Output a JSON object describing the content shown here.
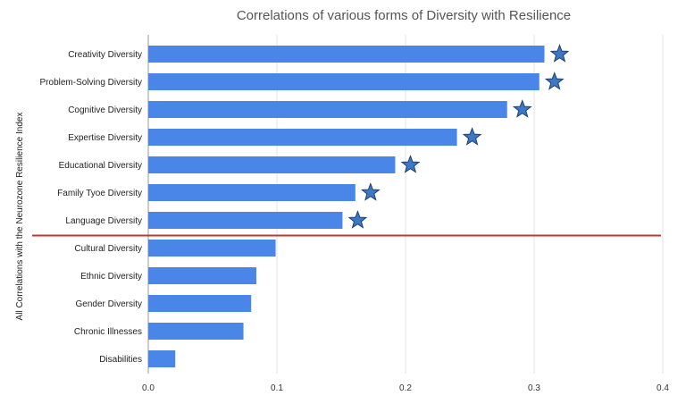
{
  "chart_data": {
    "type": "bar",
    "orientation": "horizontal",
    "title": "Correlations of various forms of Diversity with Resilience",
    "ylabel": "All Correlations with the Neurozone Resilience Index",
    "xlabel": "",
    "xlim": [
      0,
      0.4
    ],
    "xticks": [
      "0.0",
      "0.1",
      "0.2",
      "0.3",
      "0.4"
    ],
    "grid": "vertical",
    "bar_color": "#4a86e8",
    "marker_color": "#3c78c3",
    "divider_color": "#c0392b",
    "divider_after_index": 6,
    "categories": [
      "Creativity Diversity",
      "Problem-Solving Diversity",
      "Cognitive Diversity",
      "Expertise Diversity",
      "Educational Diversity",
      "Family Tyoe Diversity",
      "Language Diversity",
      "Cultural Diversity",
      "Ethnic Diversity",
      "Gender Diversity",
      "Chronic Illnesses",
      "Disabilities"
    ],
    "values": [
      0.308,
      0.304,
      0.279,
      0.24,
      0.192,
      0.161,
      0.151,
      0.099,
      0.084,
      0.08,
      0.074,
      0.021
    ],
    "significant": [
      true,
      true,
      true,
      true,
      true,
      true,
      true,
      false,
      false,
      false,
      false,
      false
    ],
    "marker_icon": "star-icon"
  }
}
